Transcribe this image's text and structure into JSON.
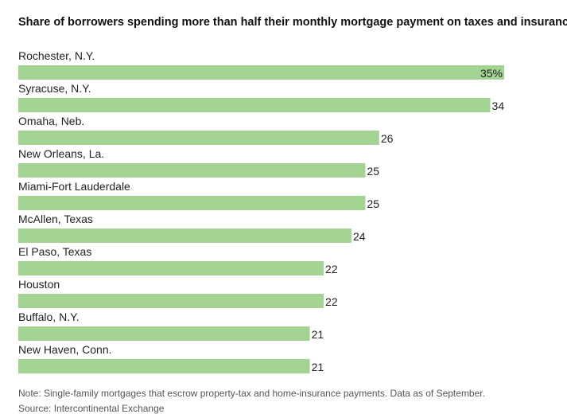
{
  "chart_data": {
    "type": "bar",
    "orientation": "horizontal",
    "title": "Share of borrowers spending more than half their monthly mortgage payment on taxes and insurance",
    "categories": [
      "Rochester, N.Y.",
      "Syracuse, N.Y.",
      "Omaha, Neb.",
      "New Orleans, La.",
      "Miami-Fort Lauderdale",
      "McAllen, Texas",
      "El Paso, Texas",
      "Houston",
      "Buffalo, N.Y.",
      "New Haven, Conn."
    ],
    "values": [
      35,
      34,
      26,
      25,
      25,
      24,
      22,
      22,
      21,
      21
    ],
    "value_labels": [
      "35%",
      "34",
      "26",
      "25",
      "25",
      "24",
      "22",
      "22",
      "21",
      "21"
    ],
    "unit": "%",
    "xlim": [
      0,
      35
    ],
    "grid": false,
    "xlabel": "",
    "ylabel": ""
  },
  "colors": {
    "bar": "#a3d494",
    "text": "#222222"
  },
  "footer": {
    "note": "Note: Single-family mortgages that escrow property-tax and home-insurance payments. Data as of September.",
    "source": "Source: Intercontinental Exchange"
  }
}
